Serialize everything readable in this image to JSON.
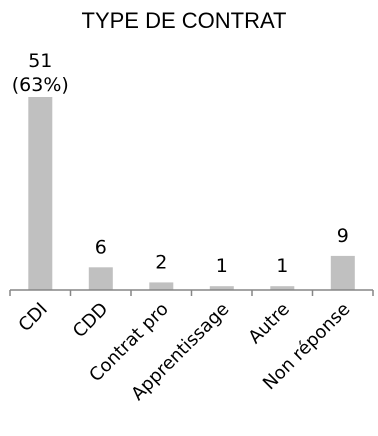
{
  "chart_data": {
    "type": "bar",
    "title": "TYPE DE CONTRAT",
    "categories": [
      "CDI",
      "CDD",
      "Contrat pro",
      "Apprentissage",
      "Autre",
      "Non réponse"
    ],
    "values": [
      51,
      6,
      2,
      1,
      1,
      9
    ],
    "data_labels": [
      "51",
      "6",
      "2",
      "1",
      "1",
      "9"
    ],
    "percent_labels": [
      "(63%)",
      "",
      "",
      "",
      "",
      ""
    ],
    "xlabel": "",
    "ylabel": "",
    "ylim": [
      0,
      51
    ],
    "grid": false,
    "legend": "none",
    "colors": {
      "bar": "#c0c0c0",
      "axis": "#868686",
      "text": "#000000"
    }
  }
}
